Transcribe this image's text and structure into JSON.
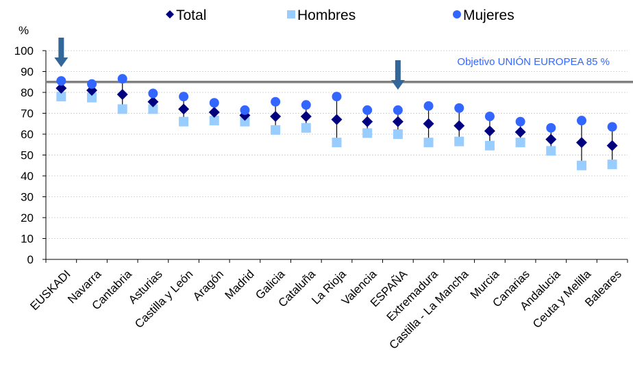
{
  "chart_data": {
    "type": "scatter",
    "unit_label": "%",
    "ylim": [
      0,
      100
    ],
    "yticks": [
      0,
      10,
      20,
      30,
      40,
      50,
      60,
      70,
      80,
      90,
      100
    ],
    "grid": true,
    "legend_position": "top",
    "categories": [
      "EUSKADI",
      "Navarra",
      "Cantabria",
      "Asturias",
      "Castilla y León",
      "Aragón",
      "Madrid",
      "Galicia",
      "Cataluña",
      "La Rioja",
      "Valencia",
      "ESPAÑA",
      "Extremadura",
      "Castilla - La Mancha",
      "Murcia",
      "Canarias",
      "Andalucia",
      "Ceuta y Melilla",
      "Baleares"
    ],
    "series": [
      {
        "name": "Total",
        "marker": "diamond",
        "color": "#00007F",
        "values": [
          82,
          81,
          79,
          75.5,
          72,
          70.5,
          69,
          68.5,
          68.5,
          67,
          66,
          66,
          65,
          64,
          61.5,
          61,
          57.5,
          56,
          54.5
        ]
      },
      {
        "name": "Hombres",
        "marker": "square",
        "color": "#99CCFF",
        "values": [
          78,
          77.5,
          72,
          72,
          66,
          66.5,
          66,
          62,
          63,
          56,
          60.5,
          60,
          56,
          56.5,
          54.5,
          56,
          52,
          45,
          45.5
        ]
      },
      {
        "name": "Mujeres",
        "marker": "circle",
        "color": "#3366FF",
        "values": [
          85.5,
          84,
          86.5,
          79.5,
          78,
          75,
          71.5,
          75.5,
          74,
          78,
          71.5,
          71.5,
          73.5,
          72.5,
          68.5,
          66,
          63,
          66.5,
          63.5
        ]
      }
    ],
    "reference_line": {
      "value": 85,
      "label": "Objetivo UNIÓN EUROPEA 85 %",
      "color": "#808080",
      "label_color": "#3366FF"
    },
    "arrow_markers": [
      {
        "category": "EUSKADI",
        "color": "#336699"
      },
      {
        "category": "ESPAÑA",
        "color": "#336699"
      }
    ]
  }
}
